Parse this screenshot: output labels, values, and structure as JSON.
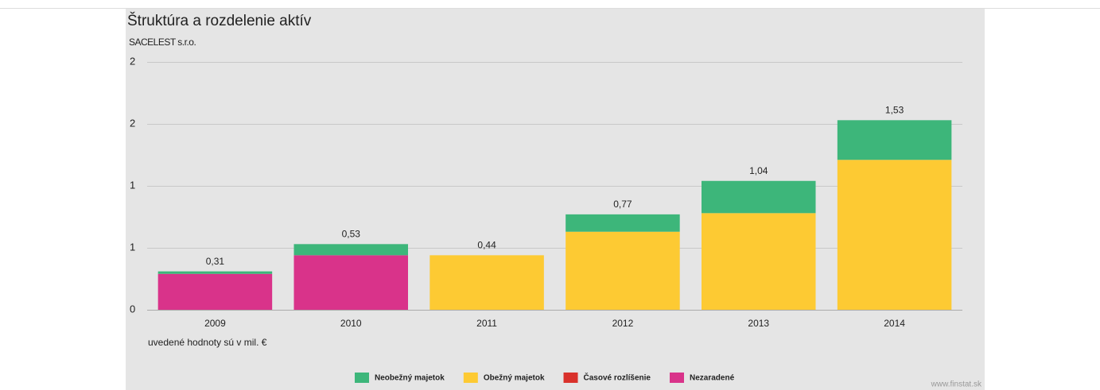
{
  "chart_data": {
    "type": "stacked_bar",
    "title": "Štruktúra a rozdelenie aktív",
    "subtitle": "SACELEST s.r.o.",
    "note": "uvedené hodnoty sú v mil. €",
    "source": "www.finstat.sk",
    "categories": [
      "2009",
      "2010",
      "2011",
      "2012",
      "2013",
      "2014"
    ],
    "series": [
      {
        "name": "Nezaradené",
        "color": "#d9338a",
        "values": [
          0.29,
          0.44,
          0,
          0,
          0,
          0
        ]
      },
      {
        "name": "Obežný majetok",
        "color": "#fdca33",
        "values": [
          0,
          0,
          0.44,
          0.63,
          0.78,
          1.21
        ]
      },
      {
        "name": "Neobežný majetok",
        "color": "#3db67a",
        "values": [
          0.02,
          0.09,
          0,
          0.14,
          0.26,
          0.32
        ]
      },
      {
        "name": "Časové rozlíšenie",
        "color": "#d9312b",
        "values": [
          0,
          0,
          0,
          0,
          0,
          0
        ]
      }
    ],
    "legend_order": [
      2,
      1,
      3,
      0
    ],
    "totals": [
      0.31,
      0.53,
      0.44,
      0.77,
      1.04,
      1.53
    ],
    "total_labels": [
      "0,31",
      "0,53",
      "0,44",
      "0,77",
      "1,04",
      "1,53"
    ],
    "ylim": [
      0,
      2
    ],
    "yticks": [
      0,
      {
        "value": 0.5,
        "label": "1"
      },
      {
        "value": 1,
        "label": "1"
      },
      {
        "value": 1.5,
        "label": "2"
      },
      2
    ],
    "grid": true
  }
}
